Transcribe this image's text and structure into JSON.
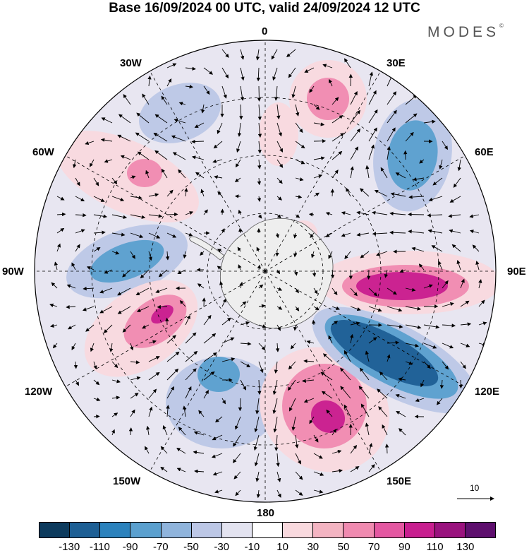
{
  "title": "Base 16/09/2024 00 UTC, valid 24/09/2024 12 UTC",
  "brand": "MODES",
  "brand_mark": "©",
  "longitude_labels": {
    "top": "0",
    "e30": "30E",
    "e60": "60E",
    "e90": "90E",
    "e120": "120E",
    "e150": "150E",
    "bottom": "180",
    "w150": "150W",
    "w120": "120W",
    "w90": "90W",
    "w60": "60W",
    "w30": "30W"
  },
  "reference_vector_label": "10",
  "colorbar": {
    "colors": [
      "#0d3b5e",
      "#1d5f95",
      "#2b82bd",
      "#5aa0cf",
      "#8fb4dc",
      "#bcc7e6",
      "#e3e3f0",
      "#ffffff",
      "#f9d9de",
      "#f4b4c2",
      "#f08ab0",
      "#e457a1",
      "#c81e8f",
      "#9a127e",
      "#5e0f6e"
    ],
    "ticks": [
      "-130",
      "-110",
      "-90",
      "-70",
      "-50",
      "-30",
      "-10",
      "10",
      "30",
      "50",
      "70",
      "90",
      "110",
      "130"
    ]
  },
  "anomaly_field": {
    "colors": {
      "neg_strong": "#1d5f95",
      "neg_mid": "#5aa0cf",
      "neg_weak": "#bcc7e6",
      "pos_weak": "#f9d9de",
      "pos_mid": "#f08ab0",
      "pos_strong": "#c81e8f",
      "land": "#eeeeee"
    }
  }
}
